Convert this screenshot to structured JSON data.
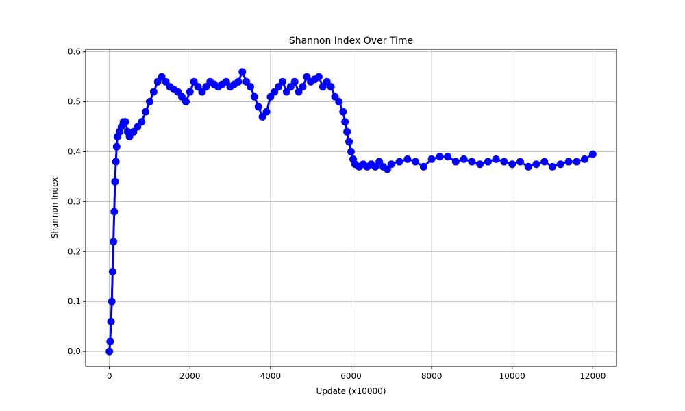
{
  "chart_data": {
    "type": "scatter",
    "title": "Shannon Index Over Time",
    "xlabel": "Update (x10000)",
    "ylabel": "Shannon Index",
    "xlim": [
      -590,
      12590
    ],
    "ylim": [
      -0.03,
      0.605
    ],
    "xticks": [
      0,
      2000,
      4000,
      6000,
      8000,
      10000,
      12000
    ],
    "yticks": [
      0.0,
      0.1,
      0.2,
      0.3,
      0.4,
      0.5,
      0.6
    ],
    "xtick_labels": [
      "0",
      "2000",
      "4000",
      "6000",
      "8000",
      "10000",
      "12000"
    ],
    "ytick_labels": [
      "0.0",
      "0.1",
      "0.2",
      "0.3",
      "0.4",
      "0.5",
      "0.6"
    ],
    "grid": true,
    "legend": "none",
    "marker": "circle",
    "color": "#0000ff",
    "series": [
      {
        "x": [
          0,
          20,
          40,
          60,
          80,
          100,
          120,
          140,
          160,
          180,
          200,
          250,
          300,
          350,
          400,
          450,
          500,
          600,
          700,
          800,
          900,
          1000,
          1100,
          1200,
          1300,
          1400,
          1500,
          1600,
          1700,
          1800,
          1900,
          2000,
          2100,
          2200,
          2300,
          2400,
          2500,
          2600,
          2700,
          2800,
          2900,
          3000,
          3100,
          3200,
          3300,
          3400,
          3500,
          3600,
          3700,
          3800,
          3900,
          4000,
          4100,
          4200,
          4300,
          4400,
          4500,
          4600,
          4700,
          4800,
          4900,
          5000,
          5100,
          5200,
          5300,
          5400,
          5500,
          5600,
          5700,
          5800,
          5850,
          5900,
          5950,
          6000,
          6050,
          6100,
          6200,
          6300,
          6400,
          6500,
          6600,
          6700,
          6800,
          6900,
          7000,
          7200,
          7400,
          7600,
          7800,
          8000,
          8200,
          8400,
          8600,
          8800,
          9000,
          9200,
          9400,
          9600,
          9800,
          10000,
          10200,
          10400,
          10600,
          10800,
          11000,
          11200,
          11400,
          11600,
          11800,
          12000
        ],
        "y": [
          0.0,
          0.02,
          0.06,
          0.1,
          0.16,
          0.22,
          0.28,
          0.34,
          0.38,
          0.41,
          0.43,
          0.44,
          0.45,
          0.46,
          0.46,
          0.44,
          0.43,
          0.44,
          0.45,
          0.46,
          0.48,
          0.5,
          0.52,
          0.54,
          0.55,
          0.54,
          0.53,
          0.525,
          0.52,
          0.51,
          0.5,
          0.52,
          0.54,
          0.53,
          0.52,
          0.53,
          0.54,
          0.535,
          0.53,
          0.535,
          0.54,
          0.53,
          0.535,
          0.54,
          0.56,
          0.54,
          0.53,
          0.51,
          0.49,
          0.47,
          0.48,
          0.51,
          0.52,
          0.53,
          0.54,
          0.52,
          0.53,
          0.54,
          0.52,
          0.53,
          0.55,
          0.54,
          0.545,
          0.55,
          0.53,
          0.54,
          0.53,
          0.51,
          0.5,
          0.48,
          0.46,
          0.44,
          0.42,
          0.4,
          0.385,
          0.375,
          0.37,
          0.375,
          0.37,
          0.375,
          0.37,
          0.38,
          0.37,
          0.365,
          0.375,
          0.38,
          0.385,
          0.38,
          0.37,
          0.385,
          0.39,
          0.39,
          0.38,
          0.385,
          0.38,
          0.375,
          0.38,
          0.385,
          0.38,
          0.375,
          0.38,
          0.37,
          0.375,
          0.38,
          0.37,
          0.375,
          0.38,
          0.38,
          0.385,
          0.395
        ]
      }
    ]
  }
}
